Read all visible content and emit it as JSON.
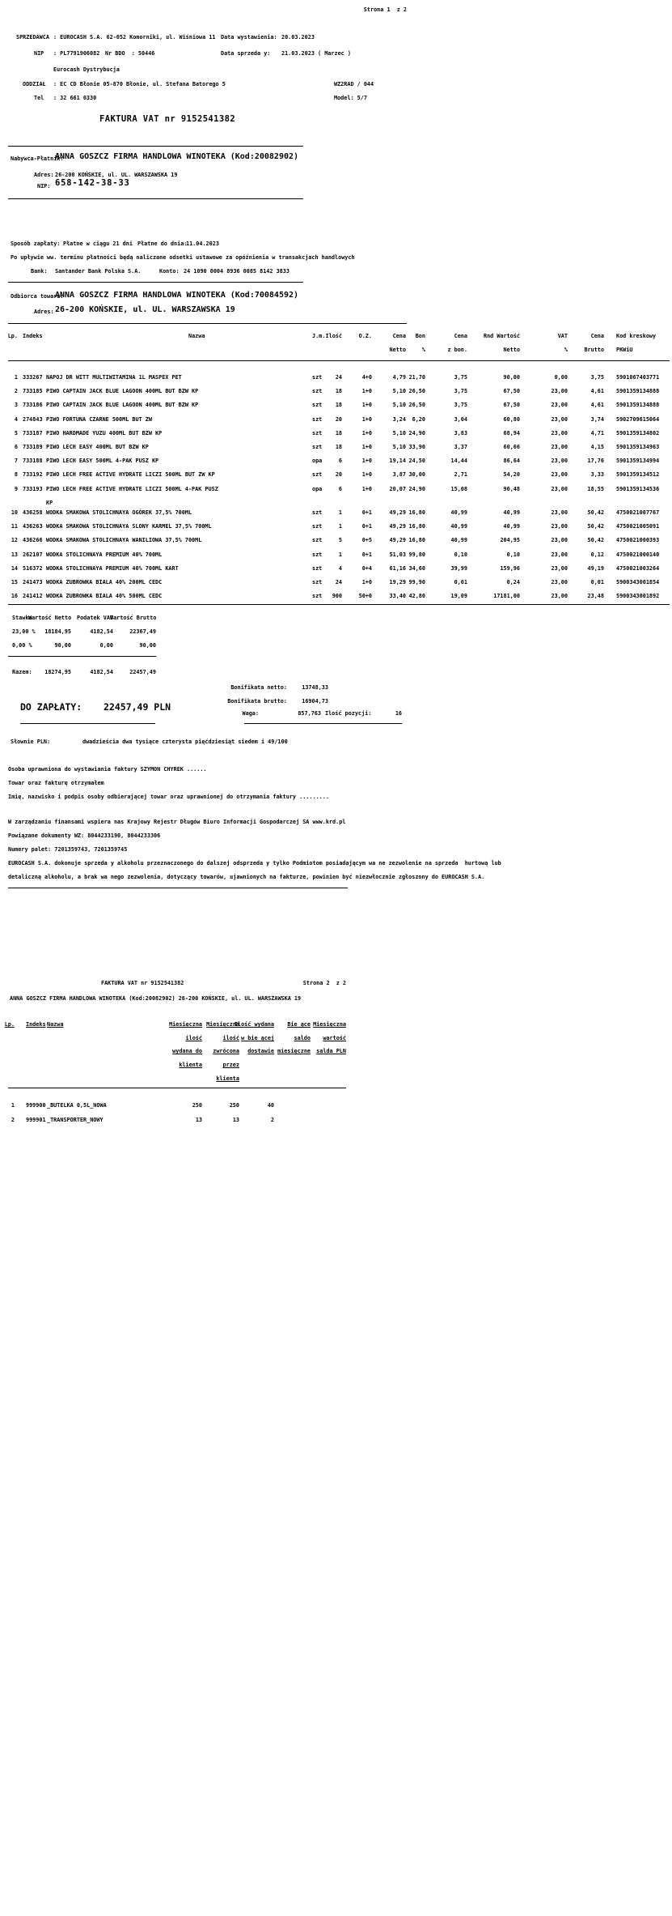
{
  "page1": {
    "page_indicator": "Strona 1  z 2",
    "seller": {
      "label": "SPRZEDAWCA",
      "value": ": EUROCASH S.A. 62-052 Komorniki, ul. Wiśniowa 11",
      "nip_label": "NIP",
      "nip_value": ": PL7791906082",
      "bdo": "Nr BDO  : 50446",
      "division": "Eurocash Dystrybucja",
      "branch_label": "ODDZIAŁ",
      "branch_value": ": EC CD Błonie 05-870 Błonie, ul. Stefana Batorego 5",
      "tel_label": "Tel",
      "tel_value": ": 32 661 0330"
    },
    "meta": {
      "issue_label": "Data wystawienia:",
      "issue_date": "20.03.2023",
      "sale_label": "Data sprzeda y:",
      "sale_date": "21.03.2023 ( Marzec )",
      "wz_code": "WZ2RAD / 044",
      "model": "Model: 5/7"
    },
    "title": "FAKTURA VAT nr 9152541382",
    "buyer": {
      "label": "Nabywca-Płatnik:",
      "name": "ANNA GOSZCZ FIRMA HANDLOWA WINOTEKA (Kod:20082902)",
      "addr_label": "Adres:",
      "addr": "26-200 KOŃSKIE, ul. UL. WARSZAWSKA 19",
      "nip_label": "NIP:",
      "nip": "658-142-38-33"
    },
    "payment": {
      "method_label": "Sposób zapłaty:",
      "method": "Płatne w ciągu 21 dni",
      "due_label": "Płatne do dnia:",
      "due_date": "11.04.2023",
      "note": "Po upływie ww. terminu płatności będą naliczane odsetki ustawowe za opóźnienia w transakcjach handlowych",
      "bank_label": "Bank:",
      "bank": "Santander Bank Polska S.A.",
      "account_label": "Konto:",
      "account": "24 1090 0004 8936 0085 8142 3833"
    },
    "receiver": {
      "label": "Odbiorca towaru:",
      "name": "ANNA GOSZCZ FIRMA HANDLOWA WINOTEKA (Kod:70084592)",
      "addr_label": "Adres:",
      "addr": "26-200 KOŃSKIE, ul. UL. WARSZAWSKA 19"
    },
    "items_header": {
      "lp": "Lp.",
      "idx": "Indeks",
      "name": "Nazwa",
      "jm": "J.m.",
      "qty": "Ilość",
      "oz": "O.Z.",
      "cn1": "Cena",
      "cn2": "Netto",
      "bon1": "Bon",
      "bon2": "%",
      "czb1": "Cena",
      "czb2": "z bon.",
      "wn1": "Rnd Wartość",
      "wn2": "Netto",
      "vat1": "VAT",
      "vat2": "%",
      "cb1": "Cena",
      "cb2": "Brutto",
      "kod1": "Kod kreskowy",
      "kod2": "PKWiU"
    },
    "items": [
      {
        "lp": "1",
        "idx": "333267",
        "name": "NAPOJ DR WITT MULTIWITAMINA 1L MASPEX PET",
        "jm": "szt",
        "qty": "24",
        "oz": "4+0",
        "cn": "4,79",
        "bon": "21,70",
        "czb": "3,75",
        "wn": "90,00",
        "vat": "0,00",
        "cb": "3,75",
        "kod": "5901067403771"
      },
      {
        "lp": "2",
        "idx": "733185",
        "name": "PIWO CAPTAIN JACK BLUE LAGOON 400ML BUT BZW KP",
        "jm": "szt",
        "qty": "18",
        "oz": "1+0",
        "cn": "5,10",
        "bon": "26,50",
        "czb": "3,75",
        "wn": "67,50",
        "vat": "23,00",
        "cb": "4,61",
        "kod": "5901359134888"
      },
      {
        "lp": "3",
        "idx": "733186",
        "name": "PIWO CAPTAIN JACK BLUE LAGOON 400ML BUT BZW KP",
        "jm": "szt",
        "qty": "18",
        "oz": "1+0",
        "cn": "5,10",
        "bon": "26,50",
        "czb": "3,75",
        "wn": "67,50",
        "vat": "23,00",
        "cb": "4,61",
        "kod": "5901359134888"
      },
      {
        "lp": "4",
        "idx": "274843",
        "name": "PIWO FORTUNA CZARNE 500ML BUT ZW",
        "jm": "szt",
        "qty": "20",
        "oz": "1+0",
        "cn": "3,24",
        "bon": "6,20",
        "czb": "3,04",
        "wn": "60,80",
        "vat": "23,00",
        "cb": "3,74",
        "kod": "5902709615064"
      },
      {
        "lp": "5",
        "idx": "733187",
        "name": "PIWO HARDMADE YUZU 400ML BUT BZW KP",
        "jm": "szt",
        "qty": "18",
        "oz": "1+0",
        "cn": "5,10",
        "bon": "24,90",
        "czb": "3,83",
        "wn": "68,94",
        "vat": "23,00",
        "cb": "4,71",
        "kod": "5901359134802"
      },
      {
        "lp": "6",
        "idx": "733189",
        "name": "PIWO LECH EASY 400ML BUT BZW KP",
        "jm": "szt",
        "qty": "18",
        "oz": "1+0",
        "cn": "5,10",
        "bon": "33,90",
        "czb": "3,37",
        "wn": "60,66",
        "vat": "23,00",
        "cb": "4,15",
        "kod": "5901359134963"
      },
      {
        "lp": "7",
        "idx": "733188",
        "name": "PIWO LECH EASY 500ML 4-PAK PUSZ KP",
        "jm": "opa",
        "qty": "6",
        "oz": "1+0",
        "cn": "19,14",
        "bon": "24,50",
        "czb": "14,44",
        "wn": "86,64",
        "vat": "23,00",
        "cb": "17,76",
        "kod": "5901359134994"
      },
      {
        "lp": "8",
        "idx": "733192",
        "name": "PIWO LECH FREE ACTIVE HYDRATE LICZI 500ML BUT ZW KP",
        "jm": "szt",
        "qty": "20",
        "oz": "1+0",
        "cn": "3,87",
        "bon": "30,00",
        "czb": "2,71",
        "wn": "54,20",
        "vat": "23,00",
        "cb": "3,33",
        "kod": "5901359134512"
      },
      {
        "lp": "9",
        "idx": "733193",
        "name": "PIWO LECH FREE ACTIVE HYDRATE LICZI 500ML 4-PAK PUSZ",
        "name2": "KP",
        "jm": "opa",
        "qty": "6",
        "oz": "1+0",
        "cn": "20,07",
        "bon": "24,90",
        "czb": "15,08",
        "wn": "90,48",
        "vat": "23,00",
        "cb": "18,55",
        "kod": "5901359134536"
      },
      {
        "lp": "10",
        "idx": "436258",
        "name": "WODKA SMAKOWA STOLICHNAYA OGÓREK 37,5% 700ML",
        "jm": "szt",
        "qty": "1",
        "oz": "0+1",
        "cn": "49,29",
        "bon": "16,80",
        "czb": "40,99",
        "wn": "40,99",
        "vat": "23,00",
        "cb": "50,42",
        "kod": "4750021007767"
      },
      {
        "lp": "11",
        "idx": "436263",
        "name": "WODKA SMAKOWA STOLICHNAYA SLONY KARMEL 37,5% 700ML",
        "jm": "szt",
        "qty": "1",
        "oz": "0+1",
        "cn": "49,29",
        "bon": "16,80",
        "czb": "40,99",
        "wn": "40,99",
        "vat": "23,00",
        "cb": "50,42",
        "kod": "4750021005091"
      },
      {
        "lp": "12",
        "idx": "436266",
        "name": "WODKA SMAKOWA STOLICHNAYA WANILIOWA 37,5% 700ML",
        "jm": "szt",
        "qty": "5",
        "oz": "0+5",
        "cn": "49,29",
        "bon": "16,80",
        "czb": "40,99",
        "wn": "204,95",
        "vat": "23,00",
        "cb": "50,42",
        "kod": "4750021000393"
      },
      {
        "lp": "13",
        "idx": "262107",
        "name": "WODKA STOLICHNAYA PREMIUM 40% 700ML",
        "jm": "szt",
        "qty": "1",
        "oz": "0+1",
        "cn": "51,03",
        "bon": "99,80",
        "czb": "0,10",
        "wn": "0,10",
        "vat": "23,00",
        "cb": "0,12",
        "kod": "4750021000140"
      },
      {
        "lp": "14",
        "idx": "516372",
        "name": "WODKA STOLICHNAYA PREMIUM 40% 700ML KART",
        "jm": "szt",
        "qty": "4",
        "oz": "0+4",
        "cn": "61,16",
        "bon": "34,60",
        "czb": "39,99",
        "wn": "159,96",
        "vat": "23,00",
        "cb": "49,19",
        "kod": "4750021003264"
      },
      {
        "lp": "15",
        "idx": "241473",
        "name": "WODKA ZUBROWKA BIALA 40% 200ML CEDC",
        "jm": "szt",
        "qty": "24",
        "oz": "1+0",
        "cn": "19,29",
        "bon": "99,90",
        "czb": "0,01",
        "wn": "0,24",
        "vat": "23,00",
        "cb": "0,01",
        "kod": "5900343001854"
      },
      {
        "lp": "16",
        "idx": "241412",
        "name": "WODKA ZUBROWKA BIALA 40% 500ML CEDC",
        "jm": "szt",
        "qty": "900",
        "oz": "50+0",
        "cn": "33,40",
        "bon": "42,80",
        "czb": "19,09",
        "wn": "17181,00",
        "vat": "23,00",
        "cb": "23,48",
        "kod": "5900343001892"
      }
    ],
    "vat": {
      "h": [
        "Stawka",
        "Wartość Netto",
        "Podatek VAT",
        "Wartość Brutto"
      ],
      "rows": [
        [
          "23,00 %",
          "18184,95",
          "4182,54",
          "22367,49"
        ],
        [
          "0,00 %",
          "90,00",
          "0,00",
          "90,00"
        ]
      ],
      "razem_label": "Razem:",
      "razem": [
        "18274,95",
        "4182,54",
        "22457,49"
      ]
    },
    "totals": {
      "bonus_net_label": "Bonifikata netto:",
      "bonus_net": "13748,33",
      "bonus_gross_label": "Bonifikata brutto:",
      "bonus_gross": "16904,73",
      "pay_label": "DO ZAPŁATY:",
      "pay_value": "22457,49 PLN",
      "weight_label": "Waga:",
      "weight": "857,763",
      "positions_label": "Ilość pozycji:",
      "positions": "16",
      "words_label": "Słownie PLN:",
      "words": "dwadzieścia dwa tysiące czterysta pięćdziesiąt siedem i 49/100"
    },
    "footer": [
      "Osoba uprawniona do wystawiania faktury SZYMON CHYREK ......",
      "Towar oraz fakturę otrzymałem",
      "Imię, nazwisko i podpis osoby odbierającej towar oraz uprawnionej do otrzymania faktury .........",
      "W zarządzaniu finansami wspiera nas Krajowy Rejestr Długów Biuro Informacji Gospodarczej SA www.krd.pl",
      "Powiązane dokumenty WZ: 8044233190, 8044233306",
      "Numery palet: 7201359743, 7201359745",
      "EUROCASH S.A. dokonuje sprzeda y alkoholu przeznaczonego do dalszej odsprzeda y tylko Podmiotom posiadającym wa ne zezwolenie na sprzeda  hurtową lub",
      "detaliczną alkoholu, a brak wa nego zezwolenia, dotyczący towarów, ujawnionych na fakturze, powinien być niezwłocznie zgłoszony do EUROCASH S.A."
    ]
  },
  "page2": {
    "title": "FAKTURA VAT nr 9152541382",
    "page_indicator": "Strona 2  z 2",
    "client_line": "ANNA GOSZCZ FIRMA HANDLOWA WINOTEKA (Kod:20082902) 26-200 KOŃSKIE, ul. UL. WARSZAWSKA 19",
    "header_lines": [
      {
        "lp": "Lp.",
        "indeks": "Indeks",
        "nazwa": "Nazwa",
        "a": "Miesięczna",
        "b": "Miesięczna",
        "c": "Ilość wydana",
        "d": "Bie ące",
        "e": "Miesięczna"
      },
      {
        "a": "ilość",
        "b": "ilość",
        "c": "w bie ącej",
        "d": "saldo",
        "e": "wartość"
      },
      {
        "a": "wydana do",
        "b": "zwrócona",
        "c": "dostawie",
        "d": "miesięczne",
        "e": "salda PLN"
      },
      {
        "a": "klienta",
        "b": "przez"
      },
      {
        "b": "klienta"
      }
    ],
    "rows": [
      {
        "lp": "1",
        "indeks": "999900",
        "nazwa": "_BUTELKA 0,5L_NOWA",
        "a": "250",
        "b": "250",
        "c": "40",
        "d": "",
        "e": ""
      },
      {
        "lp": "2",
        "indeks": "999901",
        "nazwa": "_TRANSPORTER_NOWY",
        "a": "13",
        "b": "13",
        "c": "2",
        "d": "",
        "e": ""
      }
    ]
  }
}
